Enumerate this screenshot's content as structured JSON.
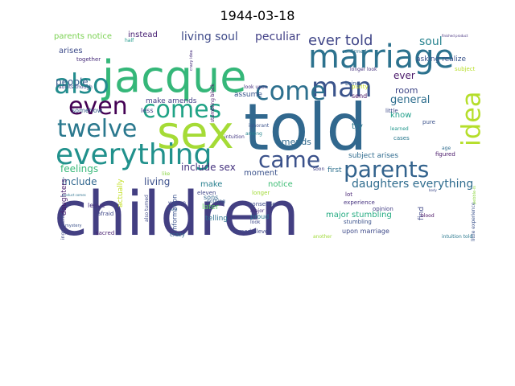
{
  "title": "1944-03-18",
  "words": [
    {
      "text": "children",
      "color": "#433f82"
    },
    {
      "text": "told",
      "color": "#31688e"
    },
    {
      "text": "jacque",
      "color": "#35b779"
    },
    {
      "text": "sex",
      "color": "#a5db36"
    },
    {
      "text": "marriage",
      "color": "#2c728e"
    },
    {
      "text": "everything",
      "color": "#21918c"
    },
    {
      "text": "man",
      "color": "#3a538b"
    },
    {
      "text": "also",
      "color": "#228c8d"
    },
    {
      "text": "comes",
      "color": "#20a386"
    },
    {
      "text": "come",
      "color": "#2d708e"
    },
    {
      "text": "twelve",
      "color": "#2a788e"
    },
    {
      "text": "even",
      "color": "#440154"
    },
    {
      "text": "parents",
      "color": "#33638d"
    },
    {
      "text": "came",
      "color": "#3b528b"
    },
    {
      "text": "idea",
      "color": "#b5de2b"
    },
    {
      "text": "ever told",
      "color": "#404688"
    },
    {
      "text": "peculiar",
      "color": "#424086"
    },
    {
      "text": "living soul",
      "color": "#3e4a89"
    },
    {
      "text": "soul",
      "color": "#26828e"
    },
    {
      "text": "general",
      "color": "#2e6e8e"
    },
    {
      "text": "ever",
      "color": "#481668"
    },
    {
      "text": "room",
      "color": "#3f4788"
    },
    {
      "text": "daughters everything",
      "color": "#2f6c8e"
    },
    {
      "text": "feelings",
      "color": "#37b878"
    },
    {
      "text": "include sex",
      "color": "#46337f"
    },
    {
      "text": "include",
      "color": "#31678e"
    },
    {
      "text": "living",
      "color": "#3c508b"
    },
    {
      "text": "people",
      "color": "#365c8d"
    },
    {
      "text": "arises",
      "color": "#3e4c8a"
    },
    {
      "text": "parents notice",
      "color": "#7ad151"
    },
    {
      "text": "instead",
      "color": "#482173"
    },
    {
      "text": "amends",
      "color": "#306a8e"
    },
    {
      "text": "know",
      "color": "#1f9e89"
    },
    {
      "text": "try",
      "color": "#2a778e"
    },
    {
      "text": "make",
      "color": "#277f8e"
    },
    {
      "text": "notice",
      "color": "#3dbc74"
    },
    {
      "text": "moment",
      "color": "#3b528b"
    },
    {
      "text": "make amends",
      "color": "#433e85"
    },
    {
      "text": "assume",
      "color": "#39558c"
    },
    {
      "text": "subject arises",
      "color": "#2f6b8e"
    },
    {
      "text": "daughters",
      "color": "#481a6c"
    },
    {
      "text": "later",
      "color": "#5ec962"
    },
    {
      "text": "telling",
      "color": "#2c718e"
    },
    {
      "text": "major stumbling",
      "color": "#25ac82"
    },
    {
      "text": "find",
      "color": "#3f4889"
    },
    {
      "text": "asking realize",
      "color": "#3a538b"
    },
    {
      "text": "upon marriage",
      "color": "#3e4a89"
    },
    {
      "text": "first",
      "color": "#2d708e"
    },
    {
      "text": "actually",
      "color": "#c2df23"
    },
    {
      "text": "leave",
      "color": "#46327e"
    },
    {
      "text": "information",
      "color": "#3b528b"
    },
    {
      "text": "sons",
      "color": "#31678e"
    },
    {
      "text": "less",
      "color": "#424086"
    },
    {
      "text": "send",
      "color": "#471365"
    },
    {
      "text": "somehow",
      "color": "#365d8d"
    },
    {
      "text": "eleven",
      "color": "#3f4788"
    },
    {
      "text": "nonsense",
      "color": "#3e4a89"
    },
    {
      "text": "longer",
      "color": "#a2da37"
    },
    {
      "text": "proud",
      "color": "#2a788e"
    },
    {
      "text": "opinion",
      "color": "#433e85"
    },
    {
      "text": "stumbling",
      "color": "#3b528b"
    },
    {
      "text": "experience",
      "color": "#46337f"
    },
    {
      "text": "turned eleven",
      "color": "#3f4889"
    },
    {
      "text": "crazy",
      "color": "#2e6d8e"
    },
    {
      "text": "purity",
      "color": "#c8e020"
    },
    {
      "text": "bring",
      "color": "#365c8d"
    },
    {
      "text": "pure",
      "color": "#3b528b"
    },
    {
      "text": "cases",
      "color": "#2a788e"
    },
    {
      "text": "figured",
      "color": "#481769"
    },
    {
      "text": "little",
      "color": "#3e4a89"
    },
    {
      "text": "lot",
      "color": "#482374"
    },
    {
      "text": "soon",
      "color": "#424086"
    },
    {
      "text": "major",
      "color": "#472d7b"
    },
    {
      "text": "sacred",
      "color": "#481f70"
    },
    {
      "text": "afraid",
      "color": "#3f4788"
    },
    {
      "text": "together",
      "color": "#472c7a"
    },
    {
      "text": "nothing",
      "color": "#34608d"
    },
    {
      "text": "woman",
      "color": "#3f4788"
    },
    {
      "text": "among",
      "color": "#25848e"
    },
    {
      "text": "subject",
      "color": "#b8de29"
    },
    {
      "text": "look upon",
      "color": "#46307e"
    },
    {
      "text": "intuition",
      "color": "#443983"
    },
    {
      "text": "ignorant",
      "color": "#3b528b"
    },
    {
      "text": "learned",
      "color": "#1f968b"
    },
    {
      "text": "longer look",
      "color": "#46327e"
    },
    {
      "text": "confirmed",
      "color": "#2d708e"
    },
    {
      "text": "stumbling block",
      "color": "#48186a"
    },
    {
      "text": "adults-though",
      "color": "#3e4a89"
    },
    {
      "text": "look",
      "color": "#3f4889"
    },
    {
      "text": "another",
      "color": "#a0da39"
    },
    {
      "text": "little experience",
      "color": "#3b528b"
    },
    {
      "text": "intuition told",
      "color": "#2a788e"
    },
    {
      "text": "blood",
      "color": "#471063"
    },
    {
      "text": "also turned",
      "color": "#3e4a89"
    },
    {
      "text": "like",
      "color": "#8bd646"
    },
    {
      "text": "age",
      "color": "#2f6c8e"
    },
    {
      "text": "ingredients",
      "color": "#3f4788"
    },
    {
      "text": "half",
      "color": "#1f9a8a"
    },
    {
      "text": "crazy idea",
      "color": "#472f7d"
    },
    {
      "text": "mystery",
      "color": "#3b528b"
    },
    {
      "text": "product comes",
      "color": "#2c718e"
    },
    {
      "text": "finished product",
      "color": "#46337f"
    },
    {
      "text": "pebble-is",
      "color": "#8fd744"
    },
    {
      "text": "body",
      "color": "#3e4a89"
    },
    {
      "text": "found",
      "color": "#34618d"
    }
  ]
}
